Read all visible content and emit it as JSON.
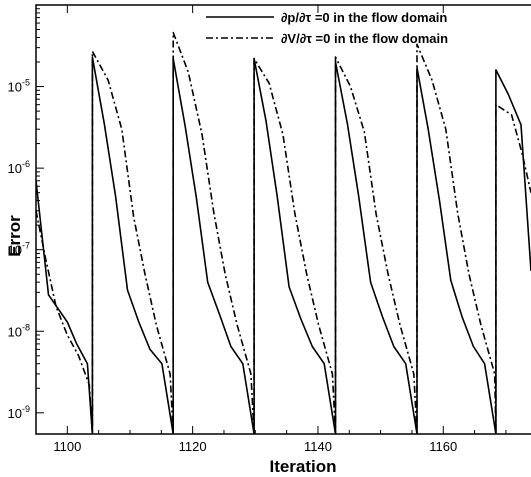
{
  "chart_data": {
    "type": "line",
    "xlabel": "Iteration",
    "ylabel": "Error",
    "xlim": [
      1095,
      1174
    ],
    "ylim": [
      5.5e-10,
      0.0001
    ],
    "yscale": "log",
    "grid": false,
    "legend_position": "top-right",
    "x_ticks": [
      1100,
      1120,
      1140,
      1160
    ],
    "y_ticks": [
      {
        "value": 1e-09,
        "base": "10",
        "exp": "-9"
      },
      {
        "value": 1e-08,
        "base": "10",
        "exp": "-8"
      },
      {
        "value": 1e-07,
        "base": "10",
        "exp": "-7"
      },
      {
        "value": 1e-06,
        "base": "10",
        "exp": "-6"
      },
      {
        "value": 1e-05,
        "base": "10",
        "exp": "-5"
      }
    ],
    "series": [
      {
        "name": "∂p/∂τ =0 in the flow domain",
        "style": "solid",
        "color": "#000000",
        "x": [
          1095,
          1097,
          1100,
          1101.5,
          1103.2,
          1104,
          1104,
          1105.9,
          1107.7,
          1109.6,
          1111.4,
          1113.2,
          1115.1,
          1116.9,
          1116.9,
          1118.8,
          1120.6,
          1122.4,
          1124.3,
          1126.1,
          1128.0,
          1129.8,
          1129.8,
          1131.7,
          1133.5,
          1135.4,
          1137.3,
          1139.1,
          1141.0,
          1142.8,
          1142.8,
          1144.7,
          1146.5,
          1148.4,
          1150.3,
          1152.1,
          1154.0,
          1155.8,
          1155.8,
          1157.6,
          1159.4,
          1161.2,
          1163.0,
          1164.8,
          1166.6,
          1168.4,
          1168.4,
          1170.4,
          1172.4,
          1174
        ],
        "y": [
          7e-07,
          2.8e-08,
          1.3e-08,
          7e-09,
          4e-09,
          5.5e-10,
          2.3e-05,
          3.5e-06,
          4.5e-07,
          3.2e-08,
          1.3e-08,
          6e-09,
          4e-09,
          5.5e-10,
          2.2e-05,
          3.3e-06,
          4.3e-07,
          4e-08,
          1.6e-08,
          6.5e-09,
          4e-09,
          5.5e-10,
          2.2e-05,
          3.8e-06,
          4.5e-07,
          3.5e-08,
          1.4e-08,
          6.5e-09,
          4e-09,
          5.5e-10,
          2e-05,
          3.5e-06,
          4.5e-07,
          4e-08,
          1.5e-08,
          6.5e-09,
          4e-09,
          5.5e-10,
          1.7e-05,
          3e-06,
          4e-07,
          4.2e-08,
          1.5e-08,
          6.5e-09,
          4e-09,
          5.5e-10,
          1.6e-05,
          8e-06,
          3.4e-06,
          5.5e-08
        ]
      },
      {
        "name": "∂V/∂τ =0 in the flow domain",
        "style": "dashdot",
        "color": "#000000",
        "x": [
          1095,
          1096.5,
          1098.2,
          1100,
          1101.8,
          1103.5,
          1104,
          1104,
          1106.5,
          1108.7,
          1110.6,
          1112.4,
          1114.2,
          1116.4,
          1116.9,
          1116.9,
          1119.3,
          1121.5,
          1123.4,
          1125.2,
          1127.1,
          1129.3,
          1129.8,
          1129.8,
          1132.2,
          1134.4,
          1136.3,
          1138.2,
          1140.1,
          1142.3,
          1142.8,
          1142.8,
          1145.2,
          1147.4,
          1149.3,
          1151.2,
          1153.1,
          1155.3,
          1155.8,
          1155.8,
          1158.2,
          1160.4,
          1162.3,
          1164.1,
          1166.0,
          1168.2,
          1168.4,
          1168.4,
          1170.9,
          1172.6,
          1174
        ],
        "y": [
          3e-07,
          8e-08,
          2e-08,
          9e-09,
          5e-09,
          2.2e-09,
          5.5e-10,
          2.7e-05,
          1.2e-05,
          3e-06,
          2.5e-07,
          5e-08,
          1.2e-08,
          3e-09,
          5.5e-10,
          4.6e-05,
          1.5e-05,
          2.6e-06,
          2.8e-07,
          5e-08,
          1.2e-08,
          3e-09,
          5.5e-10,
          2.2e-05,
          1.1e-05,
          2.6e-06,
          2.8e-07,
          5e-08,
          1.2e-08,
          3e-09,
          5.5e-10,
          2.3e-05,
          1e-05,
          2.8e-06,
          2.7e-07,
          5e-08,
          1.2e-08,
          3e-09,
          5.5e-10,
          3.3e-05,
          1.2e-05,
          3e-06,
          2.8e-07,
          5e-08,
          1.2e-08,
          3e-09,
          5.5e-10,
          6e-06,
          4.5e-06,
          1.5e-06,
          5e-07
        ]
      }
    ]
  }
}
